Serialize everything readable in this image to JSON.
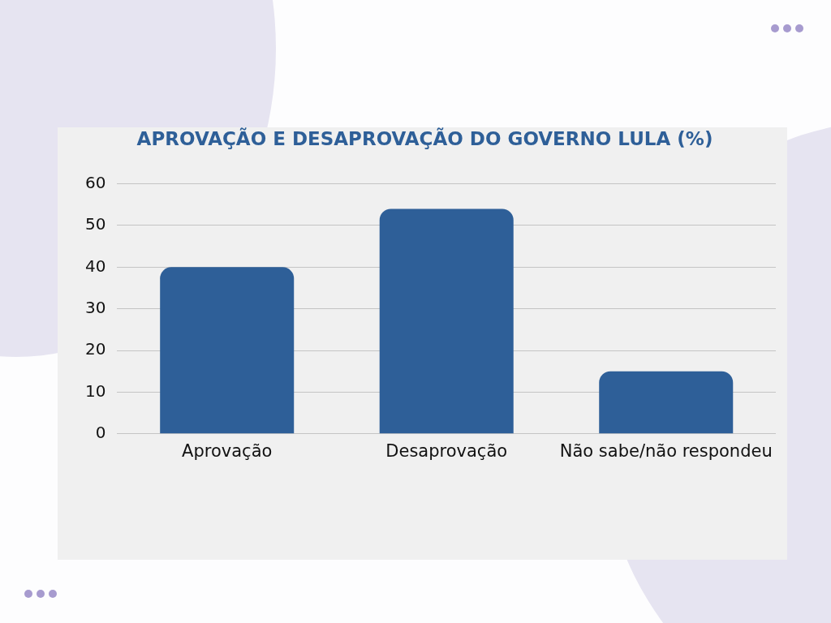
{
  "chart_data": {
    "type": "bar",
    "title": "APROVAÇÃO E DESAPROVAÇÃO DO GOVERNO LULA (%)",
    "categories": [
      "Aprovação",
      "Desaprovação",
      "Não sabe/não respondeu"
    ],
    "values": [
      40,
      54,
      15
    ],
    "color": "#2e5f98",
    "ylim": [
      0,
      60
    ],
    "yticks": [
      0,
      10,
      20,
      30,
      40,
      50,
      60
    ],
    "grid": "y"
  }
}
